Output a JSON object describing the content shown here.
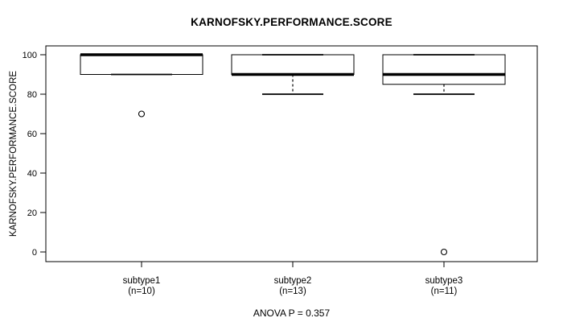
{
  "chart_data": {
    "type": "boxplot",
    "title": "KARNOFSKY.PERFORMANCE.SCORE",
    "ylabel": "KARNOFSKY.PERFORMANCE.SCORE",
    "footnote": "ANOVA P = 0.357",
    "ylim": [
      0,
      100
    ],
    "yticks": [
      0,
      20,
      40,
      60,
      80,
      100
    ],
    "grid": false,
    "legend": "none",
    "categories": [
      "subtype1",
      "subtype2",
      "subtype3"
    ],
    "category_counts": [
      "(n=10)",
      "(n=13)",
      "(n=11)"
    ],
    "series": [
      {
        "name": "subtype1",
        "n": 10,
        "whisker_low": 90,
        "q1": 90,
        "median": 100,
        "q3": 100,
        "whisker_high": 100,
        "outliers": [
          70
        ]
      },
      {
        "name": "subtype2",
        "n": 13,
        "whisker_low": 80,
        "q1": 90,
        "median": 90,
        "q3": 100,
        "whisker_high": 100,
        "outliers": []
      },
      {
        "name": "subtype3",
        "n": 11,
        "whisker_low": 80,
        "q1": 85,
        "median": 90,
        "q3": 100,
        "whisker_high": 100,
        "outliers": [
          0
        ]
      }
    ],
    "colors": {
      "ink": "#000000",
      "box_fill": "#ffffff",
      "background": "#ffffff"
    }
  }
}
